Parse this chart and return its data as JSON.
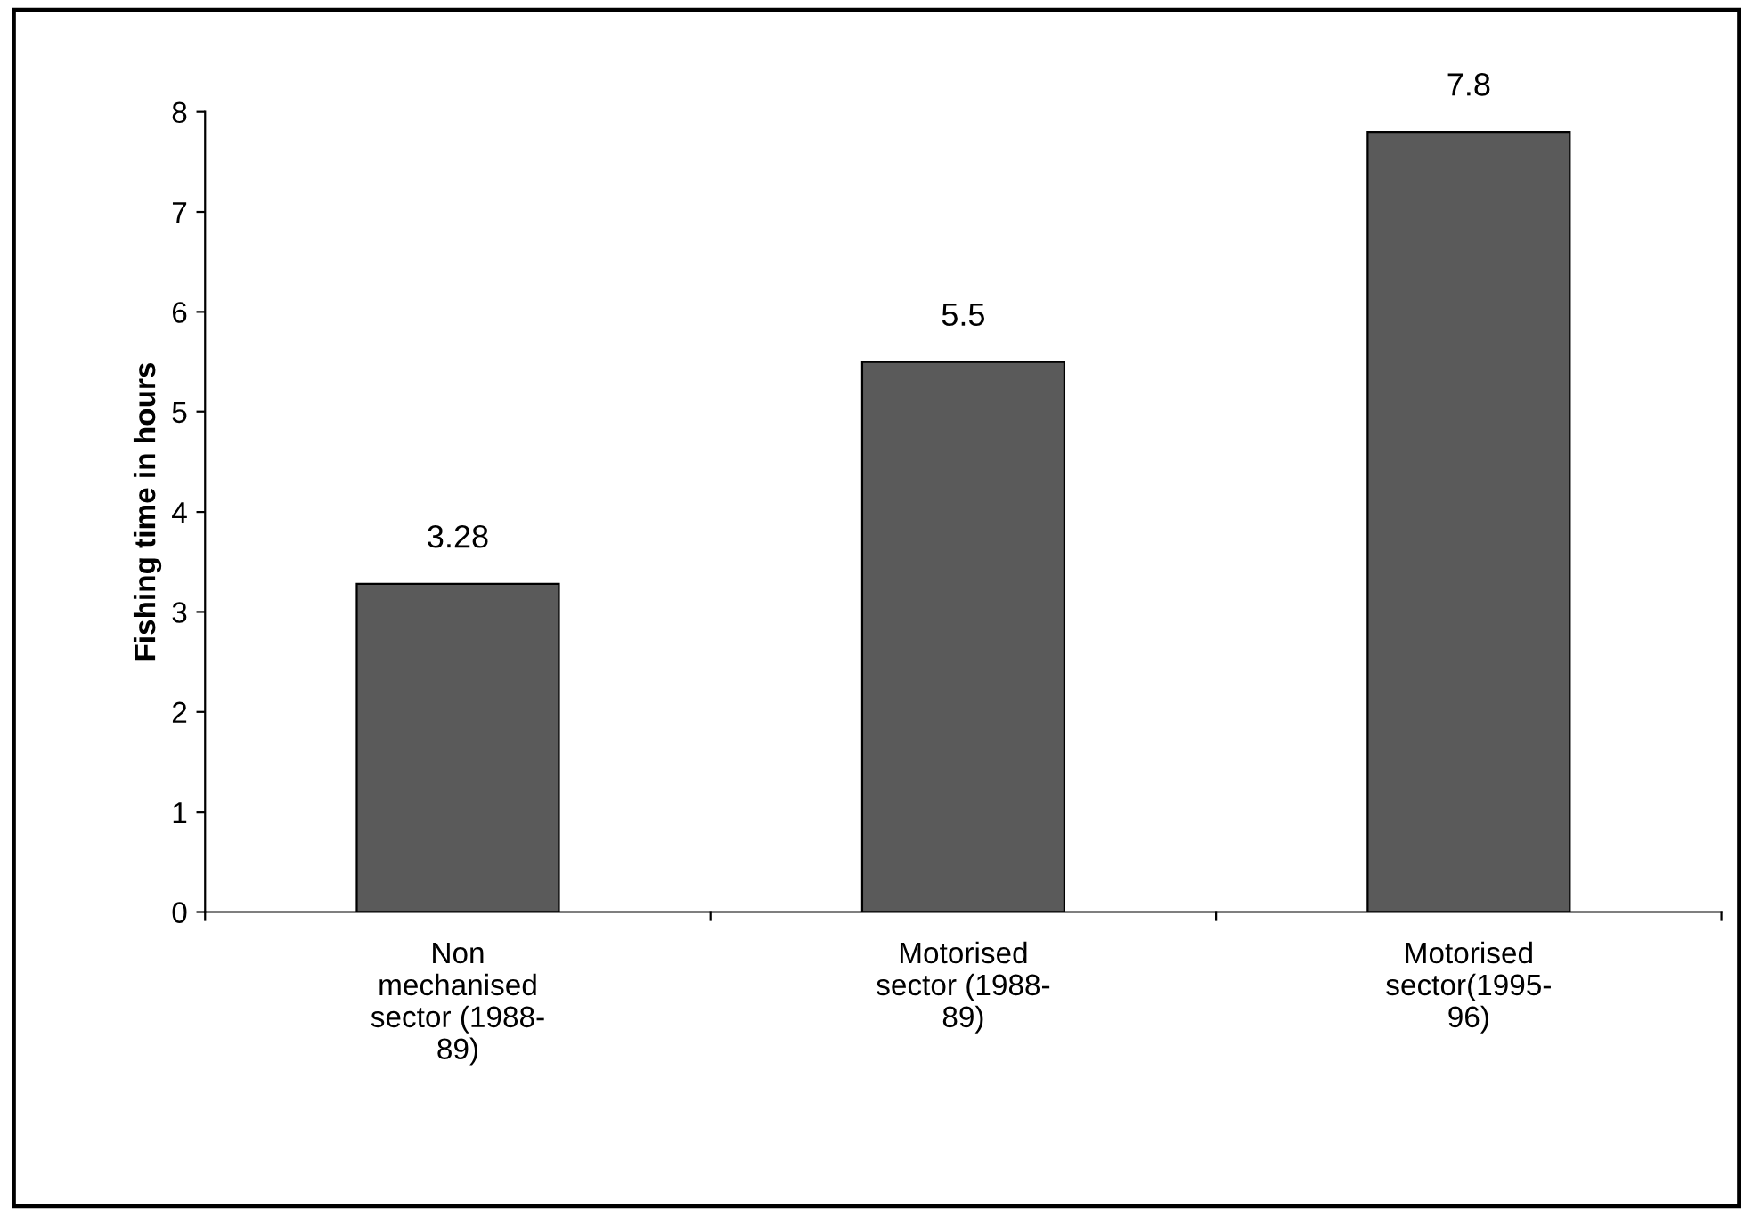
{
  "chart_data": {
    "type": "bar",
    "ylabel": "Fishing time in hours",
    "categories": [
      "Non\nmechanised\nsector (1988-\n89)",
      "Motorised\nsector (1988-\n89)",
      "Motorised\nsector(1995-\n96)"
    ],
    "values": [
      3.28,
      5.5,
      7.8
    ],
    "color": "#5a5a5a",
    "ylim": [
      0,
      8
    ],
    "yticks": [
      0,
      1,
      2,
      3,
      4,
      5,
      6,
      7,
      8
    ],
    "data_labels": true,
    "grid": false,
    "legend": false
  }
}
